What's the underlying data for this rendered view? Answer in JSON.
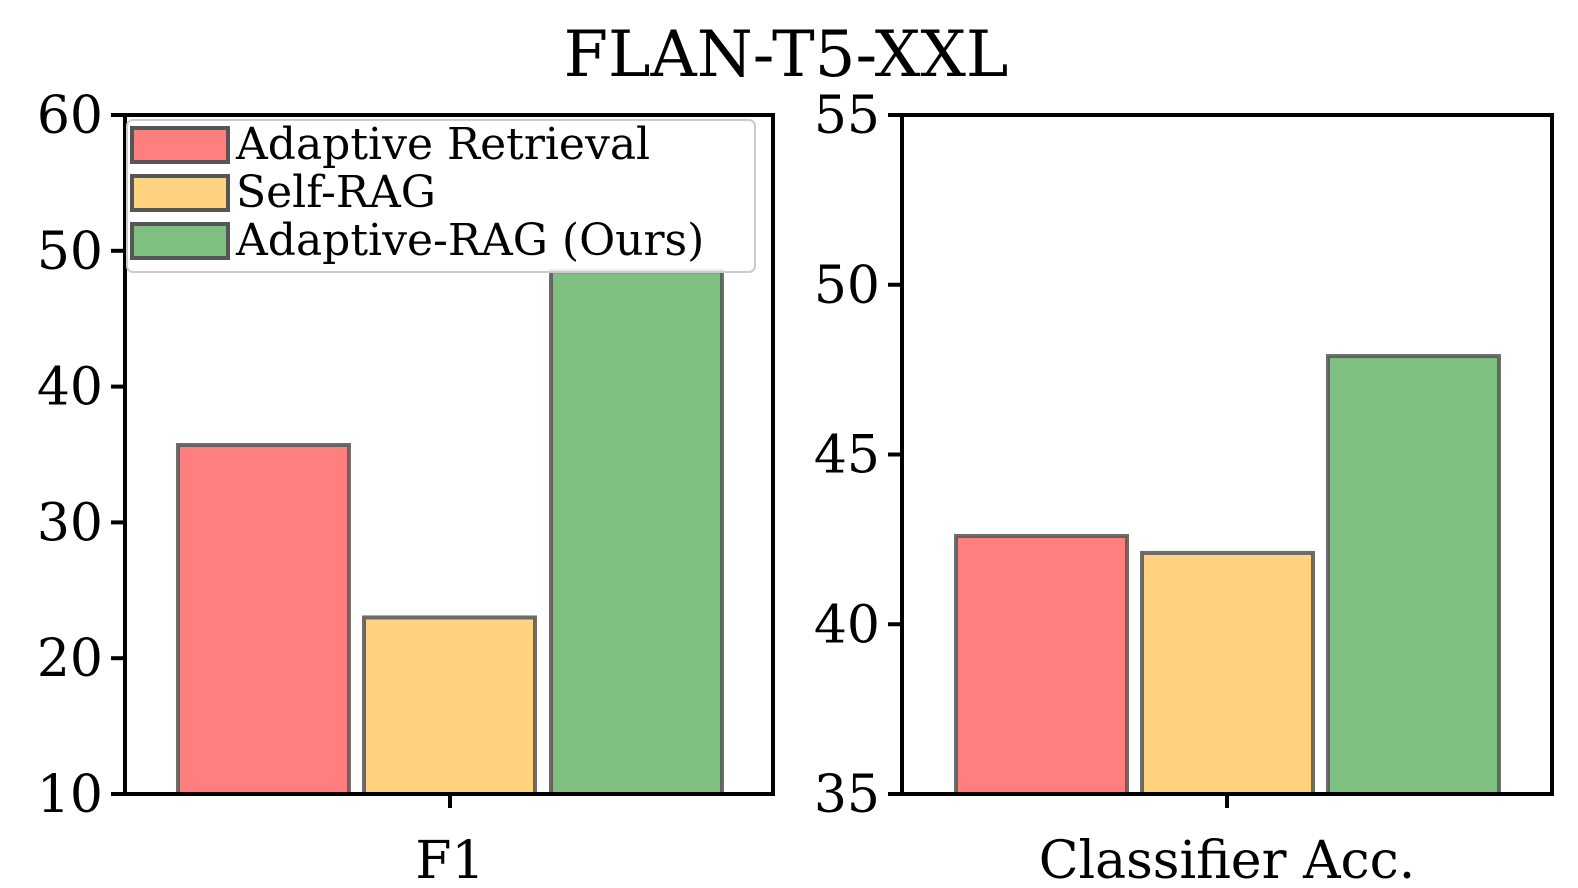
{
  "title": "FLAN-T5-XXL",
  "colors": {
    "Adaptive Retrieval": "#ff7f7f",
    "Self-RAG": "#ffd27f",
    "Adaptive-RAG (Ours)": "#7fbf7f"
  },
  "legend": {
    "placement": "top-left",
    "entries": [
      "Adaptive Retrieval",
      "Self-RAG",
      "Adaptive-RAG (Ours)"
    ]
  },
  "chart_data": [
    {
      "type": "bar",
      "categories": [
        "F1"
      ],
      "ylim": [
        10,
        60
      ],
      "yticks": [
        "10",
        "20",
        "30",
        "40",
        "50",
        "60"
      ],
      "series": [
        {
          "name": "Adaptive Retrieval",
          "values": [
            35.7
          ]
        },
        {
          "name": "Self-RAG",
          "values": [
            23.0
          ]
        },
        {
          "name": "Adaptive-RAG (Ours)",
          "values": [
            48.5
          ]
        }
      ],
      "grid": false
    },
    {
      "type": "bar",
      "categories": [
        "Classifier Acc."
      ],
      "ylim": [
        35,
        55
      ],
      "yticks": [
        "35",
        "40",
        "45",
        "50",
        "55"
      ],
      "series": [
        {
          "name": "Adaptive Retrieval",
          "values": [
            42.6
          ]
        },
        {
          "name": "Self-RAG",
          "values": [
            42.1
          ]
        },
        {
          "name": "Adaptive-RAG (Ours)",
          "values": [
            47.9
          ]
        }
      ],
      "grid": false
    }
  ]
}
